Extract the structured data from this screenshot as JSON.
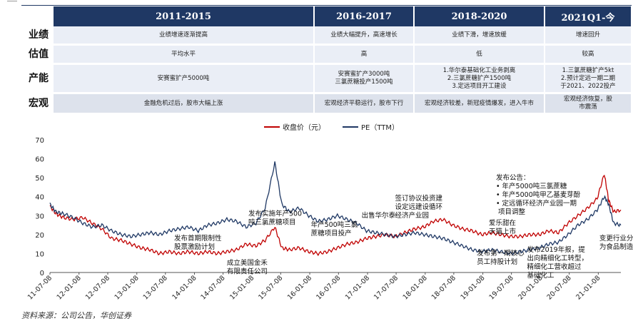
{
  "table": {
    "headers": [
      "",
      "2011-2015",
      "2016-2017",
      "2018-2020",
      "2021Q1-今"
    ],
    "rows": [
      {
        "label": "业绩",
        "cells": [
          "业绩增速逐渐提高",
          "业绩大幅提升，高速增长",
          "业绩下滑，增速放缓",
          "增速回升"
        ]
      },
      {
        "label": "估值",
        "cells": [
          "平均水平",
          "高",
          "低",
          "较高"
        ]
      },
      {
        "label": "产能",
        "cells": [
          "安赛蜜扩产5000吨",
          "安赛蜜扩产3000吨\n三氯蔗糖投产1500吨",
          "1.华尔泰基础化工业务剥离\n2.三氯蔗糖扩产1500吨\n3.定远项目开工建设",
          "1.三氯蔗糖扩产5kt\n2.预计定远一期二期\n于2021、2022投产"
        ]
      },
      {
        "label": "宏观",
        "cells": [
          "金融危机过后，股市大幅上涨",
          "宏观经济平稳运行，股市下行",
          "宏观经济较差，新冠疫情爆发，进入牛市",
          "宏观经济恢复，股\n市震荡"
        ]
      }
    ]
  },
  "chart_data": {
    "type": "line",
    "legend": [
      "收盘价（元）",
      "PE（TTM）"
    ],
    "legend_position": "top-center",
    "ylim": [
      0,
      70
    ],
    "yticks": [
      0,
      10,
      20,
      30,
      40,
      50,
      60,
      70
    ],
    "xticks": [
      "11-07-08",
      "12-01-08",
      "12-07-08",
      "13-01-08",
      "13-07-08",
      "14-01-08",
      "14-07-08",
      "15-01-08",
      "15-07-08",
      "16-01-08",
      "16-07-08",
      "17-01-08",
      "17-07-08",
      "18-01-08",
      "18-07-08",
      "19-01-08",
      "19-07-08",
      "20-01-08",
      "20-07-08",
      "21-01-08"
    ],
    "x_start": "2011-07-08",
    "x_end": "2021-05-31",
    "series": [
      {
        "name": "收盘价（元）",
        "color": "#c00000",
        "points": [
          [
            "2011-07-08",
            35
          ],
          [
            "2011-08-15",
            31
          ],
          [
            "2011-10-01",
            29
          ],
          [
            "2011-12-01",
            28
          ],
          [
            "2012-02-01",
            29
          ],
          [
            "2012-04-01",
            26
          ],
          [
            "2012-06-01",
            23
          ],
          [
            "2012-08-01",
            18
          ],
          [
            "2012-10-01",
            17
          ],
          [
            "2012-12-01",
            15
          ],
          [
            "2013-02-01",
            13
          ],
          [
            "2013-04-01",
            12
          ],
          [
            "2013-06-01",
            10
          ],
          [
            "2013-08-01",
            11
          ],
          [
            "2013-10-01",
            10
          ],
          [
            "2013-12-01",
            11
          ],
          [
            "2014-02-01",
            10
          ],
          [
            "2014-04-01",
            11
          ],
          [
            "2014-06-01",
            10
          ],
          [
            "2014-08-01",
            11
          ],
          [
            "2014-10-01",
            12
          ],
          [
            "2014-12-01",
            15
          ],
          [
            "2015-02-01",
            14
          ],
          [
            "2015-04-01",
            17
          ],
          [
            "2015-06-01",
            24
          ],
          [
            "2015-07-15",
            13
          ],
          [
            "2015-09-01",
            12
          ],
          [
            "2015-11-01",
            13
          ],
          [
            "2016-01-01",
            11
          ],
          [
            "2016-03-01",
            10
          ],
          [
            "2016-05-01",
            11
          ],
          [
            "2016-07-01",
            13
          ],
          [
            "2016-09-01",
            15
          ],
          [
            "2016-11-01",
            16
          ],
          [
            "2017-01-01",
            18
          ],
          [
            "2017-03-01",
            19
          ],
          [
            "2017-05-01",
            20
          ],
          [
            "2017-07-01",
            19
          ],
          [
            "2017-09-01",
            21
          ],
          [
            "2017-11-01",
            23
          ],
          [
            "2018-01-01",
            24
          ],
          [
            "2018-03-01",
            27
          ],
          [
            "2018-05-01",
            28
          ],
          [
            "2018-07-01",
            25
          ],
          [
            "2018-09-01",
            23
          ],
          [
            "2018-11-01",
            22
          ],
          [
            "2019-01-01",
            20
          ],
          [
            "2019-03-01",
            21
          ],
          [
            "2019-05-01",
            20
          ],
          [
            "2019-07-01",
            19
          ],
          [
            "2019-09-01",
            19
          ],
          [
            "2019-11-01",
            20
          ],
          [
            "2020-01-01",
            20
          ],
          [
            "2020-03-01",
            22
          ],
          [
            "2020-05-01",
            21
          ],
          [
            "2020-07-01",
            26
          ],
          [
            "2020-09-01",
            30
          ],
          [
            "2020-11-01",
            34
          ],
          [
            "2021-01-01",
            39
          ],
          [
            "2021-02-15",
            52
          ],
          [
            "2021-03-15",
            38
          ],
          [
            "2021-04-15",
            32
          ],
          [
            "2021-05-31",
            33
          ]
        ]
      },
      {
        "name": "PE（TTM）",
        "color": "#1f3864",
        "points": [
          [
            "2011-07-08",
            36
          ],
          [
            "2011-08-15",
            32
          ],
          [
            "2011-10-01",
            31
          ],
          [
            "2011-12-01",
            29
          ],
          [
            "2012-02-01",
            26
          ],
          [
            "2012-04-01",
            24
          ],
          [
            "2012-06-01",
            25
          ],
          [
            "2012-08-01",
            22
          ],
          [
            "2012-10-01",
            20
          ],
          [
            "2012-12-01",
            19
          ],
          [
            "2013-02-01",
            20
          ],
          [
            "2013-04-01",
            21
          ],
          [
            "2013-06-01",
            20
          ],
          [
            "2013-08-01",
            22
          ],
          [
            "2013-10-01",
            23
          ],
          [
            "2013-12-01",
            24
          ],
          [
            "2014-02-01",
            22
          ],
          [
            "2014-04-01",
            25
          ],
          [
            "2014-06-01",
            26
          ],
          [
            "2014-08-01",
            28
          ],
          [
            "2014-10-01",
            27
          ],
          [
            "2014-12-01",
            24
          ],
          [
            "2015-02-01",
            26
          ],
          [
            "2015-04-01",
            34
          ],
          [
            "2015-06-01",
            58
          ],
          [
            "2015-07-15",
            36
          ],
          [
            "2015-09-01",
            32
          ],
          [
            "2015-11-01",
            34
          ],
          [
            "2016-01-01",
            30
          ],
          [
            "2016-03-01",
            27
          ],
          [
            "2016-05-01",
            28
          ],
          [
            "2016-07-01",
            30
          ],
          [
            "2016-09-01",
            28
          ],
          [
            "2016-11-01",
            26
          ],
          [
            "2017-01-01",
            22
          ],
          [
            "2017-03-01",
            21
          ],
          [
            "2017-05-01",
            20
          ],
          [
            "2017-07-01",
            19
          ],
          [
            "2017-09-01",
            20
          ],
          [
            "2017-11-01",
            21
          ],
          [
            "2018-01-01",
            20
          ],
          [
            "2018-03-01",
            19
          ],
          [
            "2018-05-01",
            18
          ],
          [
            "2018-07-01",
            16
          ],
          [
            "2018-09-01",
            14
          ],
          [
            "2018-11-01",
            12
          ],
          [
            "2019-01-01",
            11
          ],
          [
            "2019-03-01",
            12
          ],
          [
            "2019-05-01",
            11
          ],
          [
            "2019-07-01",
            10
          ],
          [
            "2019-09-01",
            11
          ],
          [
            "2019-11-01",
            12
          ],
          [
            "2020-01-01",
            13
          ],
          [
            "2020-03-01",
            15
          ],
          [
            "2020-05-01",
            16
          ],
          [
            "2020-07-01",
            20
          ],
          [
            "2020-09-01",
            25
          ],
          [
            "2020-11-01",
            28
          ],
          [
            "2021-01-01",
            33
          ],
          [
            "2021-02-15",
            40
          ],
          [
            "2021-03-15",
            36
          ],
          [
            "2021-04-15",
            26
          ],
          [
            "2021-05-31",
            25
          ]
        ]
      }
    ],
    "annotations": [
      {
        "text": "发布首期限制性\n股票激励计划",
        "date": "2013-09-01",
        "y": 17
      },
      {
        "text": "发布实施年产500\n吨三氯蔗糖项目",
        "date": "2014-12-15",
        "y": 30
      },
      {
        "text": "成立美国金禾\n有限责任公司",
        "date": "2014-08-01",
        "y": 4
      },
      {
        "text": "年产500吨三氯\n蔗糖项目投产",
        "date": "2016-01-15",
        "y": 24
      },
      {
        "text": "出售华尔泰",
        "date": "2016-12-01",
        "y": 29
      },
      {
        "text": "签订协议投资建\n设定远建设循环\n经济产业园",
        "date": "2017-07-01",
        "y": 38
      },
      {
        "text": "爱乐甜在\n天猫上市",
        "date": "2019-02-15",
        "y": 25
      },
      {
        "text": "发布公告：\n• 年产5000吨三氯蔗糖\n• 年产5000吨甲乙基麦芽酚\n• 定远循环经济产业园一期\n  项目调整",
        "date": "2019-04-01",
        "y": 49
      },
      {
        "text": "发布第一期核心\n员工持股计划",
        "date": "2018-12-01",
        "y": 9
      },
      {
        "text": "发布2019年报，提\n出向精细化工转型，\n精细化工营收超过\n基础化工",
        "date": "2019-10-15",
        "y": 11
      },
      {
        "text": "变更行业分类\n为食品制造业",
        "date": "2021-01-15",
        "y": 17
      }
    ]
  },
  "source": "资料来源：公司公告，华创证券"
}
